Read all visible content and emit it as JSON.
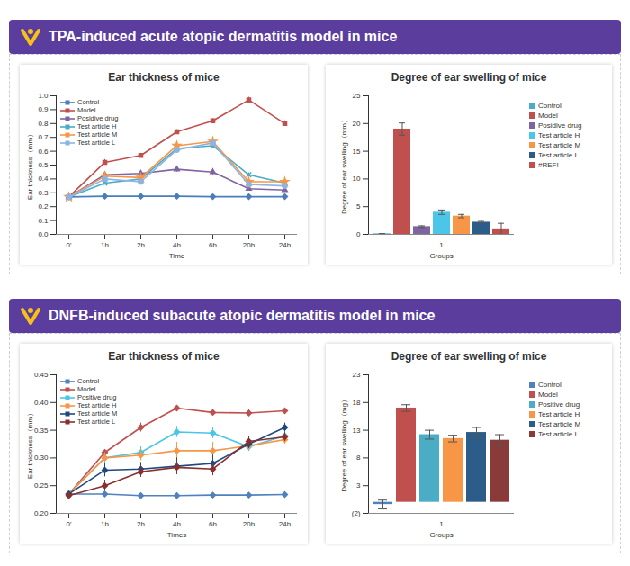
{
  "section_titles": [
    "TPA-induced acute atopic dermatitis model in mice",
    "DNFB-induced subacute atopic dermatitis model in mice"
  ],
  "chart_data": [
    {
      "type": "line",
      "title": "Ear thickness of mice",
      "xlabel": "Time",
      "ylabel": "Ear thickness（mm）",
      "categories": [
        "0'",
        "1h",
        "2h",
        "4h",
        "6h",
        "20h",
        "24h"
      ],
      "ylim": [
        0,
        1
      ],
      "yticks": [
        {
          "value": 0,
          "label": "0.0"
        },
        {
          "value": 0.1,
          "label": "0.1"
        },
        {
          "value": 0.2,
          "label": "0.2"
        },
        {
          "value": 0.3,
          "label": "0.3"
        },
        {
          "value": 0.4,
          "label": "0.4"
        },
        {
          "value": 0.5,
          "label": "0.5"
        },
        {
          "value": 0.6,
          "label": "0.6"
        },
        {
          "value": 0.7,
          "label": "0.7"
        },
        {
          "value": 0.8,
          "label": "0.8"
        },
        {
          "value": 0.9,
          "label": "0.9"
        },
        {
          "value": 1,
          "label": "1.0"
        }
      ],
      "grid": false,
      "legend": "top-left",
      "series": [
        {
          "name": "Control",
          "color": "#4a7ebb",
          "marker": "diamond",
          "values": [
            0.27,
            0.275,
            0.275,
            0.275,
            0.272,
            0.272,
            0.272
          ],
          "errors": [
            0.005,
            0.005,
            0.005,
            0.005,
            0.005,
            0.005,
            0.005
          ]
        },
        {
          "name": "Model",
          "color": "#c0504d",
          "marker": "square",
          "values": [
            0.27,
            0.52,
            0.57,
            0.74,
            0.82,
            0.97,
            0.8
          ],
          "errors": [
            0.005,
            0.02,
            0.015,
            0.015,
            0.015,
            0.02,
            0.02
          ]
        },
        {
          "name": "Posidive drug",
          "color": "#8064a2",
          "marker": "triangle",
          "values": [
            0.27,
            0.43,
            0.44,
            0.47,
            0.45,
            0.33,
            0.32
          ],
          "errors": [
            0.005,
            0.02,
            0.02,
            0.02,
            0.025,
            0.01,
            0.01
          ]
        },
        {
          "name": "Test article H",
          "color": "#4bacc6",
          "marker": "x",
          "values": [
            0.27,
            0.37,
            0.4,
            0.62,
            0.64,
            0.43,
            0.37
          ],
          "errors": [
            0.005,
            0.015,
            0.015,
            0.02,
            0.02,
            0.015,
            0.01
          ]
        },
        {
          "name": "Test article M",
          "color": "#f79646",
          "marker": "star",
          "values": [
            0.27,
            0.42,
            0.41,
            0.64,
            0.67,
            0.38,
            0.38
          ],
          "errors": [
            0.005,
            0.015,
            0.015,
            0.015,
            0.015,
            0.015,
            0.01
          ]
        },
        {
          "name": "Test article L",
          "color": "#8cb4e2",
          "marker": "circle",
          "values": [
            0.27,
            0.4,
            0.38,
            0.61,
            0.66,
            0.36,
            0.35
          ],
          "errors": [
            0.005,
            0.015,
            0.015,
            0.015,
            0.015,
            0.015,
            0.01
          ]
        }
      ]
    },
    {
      "type": "bar",
      "title": "Degree of ear swelling of mice",
      "xlabel": "Groups",
      "ylabel": "Degree of ear swelling（mm）",
      "categories": [
        "1"
      ],
      "ylim": [
        0,
        25
      ],
      "yticks": [
        0,
        5,
        10,
        15,
        20,
        25
      ],
      "grid": false,
      "legend": "right",
      "series": [
        {
          "name": "Control",
          "color": "#4bacc6",
          "values": [
            0.1
          ],
          "errors": [
            0.05
          ]
        },
        {
          "name": "Model",
          "color": "#c0504d",
          "values": [
            19
          ],
          "errors": [
            1.1
          ]
        },
        {
          "name": "Posidive drug",
          "color": "#8064a2",
          "values": [
            1.4
          ],
          "errors": [
            0.15
          ]
        },
        {
          "name": "Test article H",
          "color": "#4bc6e8",
          "values": [
            4.0
          ],
          "errors": [
            0.4
          ]
        },
        {
          "name": "Test article M",
          "color": "#f79646",
          "values": [
            3.3
          ],
          "errors": [
            0.3
          ]
        },
        {
          "name": "Test article L",
          "color": "#2c5d8a",
          "values": [
            2.2
          ],
          "errors": [
            0.15
          ]
        },
        {
          "name": "#REF!",
          "color": "#c0504d",
          "values": [
            1.0
          ],
          "errors": [
            1.0
          ]
        }
      ]
    },
    {
      "type": "line",
      "title": "Ear thickness of mice",
      "xlabel": "Times",
      "ylabel": "Ear thickness（mm）",
      "categories": [
        "0'",
        "1h",
        "2h",
        "4h",
        "6h",
        "20h",
        "24h"
      ],
      "ylim": [
        0.2,
        0.45
      ],
      "yticks": [
        {
          "value": 0.2,
          "label": "0.20"
        },
        {
          "value": 0.25,
          "label": "0.25"
        },
        {
          "value": 0.3,
          "label": "0.30"
        },
        {
          "value": 0.35,
          "label": "0.35"
        },
        {
          "value": 0.4,
          "label": "0.40"
        },
        {
          "value": 0.45,
          "label": "0.45"
        }
      ],
      "grid": false,
      "legend": "top-left",
      "marker": "diamond",
      "series": [
        {
          "name": "Control",
          "color": "#4f81bd",
          "values": [
            0.235,
            0.235,
            0.232,
            0.232,
            0.233,
            0.233,
            0.234
          ],
          "errors": [
            0.003,
            0.003,
            0.002,
            0.002,
            0.002,
            0.002,
            0.002
          ]
        },
        {
          "name": "Model",
          "color": "#c0504d",
          "values": [
            0.235,
            0.31,
            0.355,
            0.39,
            0.382,
            0.381,
            0.385
          ],
          "errors": [
            0.003,
            0.005,
            0.008,
            0.004,
            0.005,
            0.006,
            0.004
          ]
        },
        {
          "name": "Positive drug",
          "color": "#4bc6e8",
          "values": [
            0.235,
            0.3,
            0.31,
            0.347,
            0.345,
            0.32,
            0.34
          ],
          "errors": [
            0.003,
            0.01,
            0.01,
            0.01,
            0.01,
            0.008,
            0.008
          ]
        },
        {
          "name": "Test article H",
          "color": "#f79646",
          "values": [
            0.235,
            0.3,
            0.305,
            0.313,
            0.313,
            0.322,
            0.333
          ],
          "errors": [
            0.003,
            0.008,
            0.01,
            0.015,
            0.015,
            0.008,
            0.008
          ]
        },
        {
          "name": "Test article M",
          "color": "#1f497d",
          "values": [
            0.235,
            0.278,
            0.28,
            0.285,
            0.29,
            0.325,
            0.355
          ],
          "errors": [
            0.003,
            0.012,
            0.012,
            0.015,
            0.015,
            0.008,
            0.008
          ]
        },
        {
          "name": "Test article L",
          "color": "#8b2e2e",
          "values": [
            0.232,
            0.25,
            0.275,
            0.283,
            0.28,
            0.33,
            0.338
          ],
          "errors": [
            0.003,
            0.01,
            0.01,
            0.012,
            0.012,
            0.008,
            0.008
          ]
        }
      ]
    },
    {
      "type": "bar",
      "title": "Degree of ear swelling of mice",
      "xlabel": "Groups",
      "ylabel": "Degree of ear swelling（mg）",
      "categories": [
        "1"
      ],
      "ylim": [
        -2,
        23
      ],
      "yticks": [
        {
          "value": -2,
          "label": "(2)"
        },
        3,
        8,
        13,
        18,
        23
      ],
      "grid": false,
      "legend": "right",
      "series": [
        {
          "name": "Control",
          "color": "#4f81bd",
          "values": [
            -0.4
          ],
          "errors": [
            0.8
          ]
        },
        {
          "name": "Model",
          "color": "#c0504d",
          "values": [
            17
          ],
          "errors": [
            0.6
          ]
        },
        {
          "name": "Positive drug",
          "color": "#4bacc6",
          "values": [
            12.2
          ],
          "errors": [
            0.8
          ]
        },
        {
          "name": "Test article H",
          "color": "#f79646",
          "values": [
            11.5
          ],
          "errors": [
            0.6
          ]
        },
        {
          "name": "Test article M",
          "color": "#2c5d8a",
          "values": [
            12.6
          ],
          "errors": [
            0.9
          ]
        },
        {
          "name": "Test article L",
          "color": "#8b3a3a",
          "values": [
            11.2
          ],
          "errors": [
            1.0
          ]
        }
      ]
    }
  ]
}
